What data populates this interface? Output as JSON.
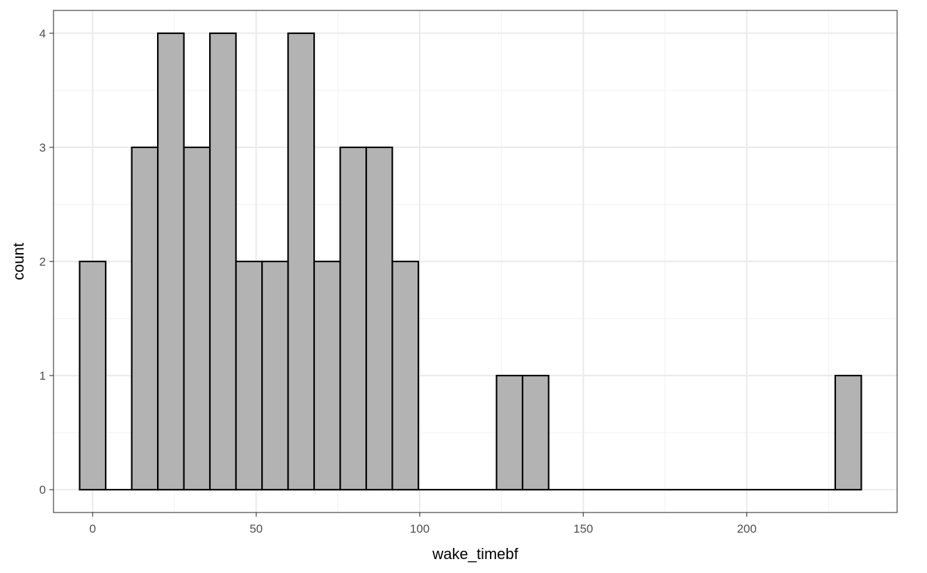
{
  "chart_data": {
    "type": "bar",
    "subtype": "histogram",
    "title": "",
    "xlabel": "wake_timebf",
    "ylabel": "count",
    "xlim": [
      -11.97,
      245.97
    ],
    "ylim": [
      -0.2,
      4.2
    ],
    "bin_width": 7.967,
    "bins": [
      {
        "start": -3.98,
        "end": 3.98,
        "count": 2
      },
      {
        "start": 3.98,
        "end": 11.95,
        "count": 0
      },
      {
        "start": 11.95,
        "end": 19.92,
        "count": 3
      },
      {
        "start": 19.92,
        "end": 27.89,
        "count": 4
      },
      {
        "start": 27.89,
        "end": 35.85,
        "count": 3
      },
      {
        "start": 35.85,
        "end": 43.82,
        "count": 4
      },
      {
        "start": 43.82,
        "end": 51.79,
        "count": 2
      },
      {
        "start": 51.79,
        "end": 59.75,
        "count": 2
      },
      {
        "start": 59.75,
        "end": 67.72,
        "count": 4
      },
      {
        "start": 67.72,
        "end": 75.69,
        "count": 2
      },
      {
        "start": 75.69,
        "end": 83.65,
        "count": 3
      },
      {
        "start": 83.65,
        "end": 91.62,
        "count": 3
      },
      {
        "start": 91.62,
        "end": 99.59,
        "count": 2
      },
      {
        "start": 99.59,
        "end": 107.55,
        "count": 0
      },
      {
        "start": 107.55,
        "end": 115.52,
        "count": 0
      },
      {
        "start": 115.52,
        "end": 123.49,
        "count": 0
      },
      {
        "start": 123.49,
        "end": 131.45,
        "count": 1
      },
      {
        "start": 131.45,
        "end": 139.42,
        "count": 1
      },
      {
        "start": 139.42,
        "end": 147.39,
        "count": 0
      },
      {
        "start": 147.39,
        "end": 155.35,
        "count": 0
      },
      {
        "start": 155.35,
        "end": 163.32,
        "count": 0
      },
      {
        "start": 163.32,
        "end": 171.29,
        "count": 0
      },
      {
        "start": 171.29,
        "end": 179.25,
        "count": 0
      },
      {
        "start": 179.25,
        "end": 187.22,
        "count": 0
      },
      {
        "start": 187.22,
        "end": 195.19,
        "count": 0
      },
      {
        "start": 195.19,
        "end": 203.15,
        "count": 0
      },
      {
        "start": 203.15,
        "end": 211.12,
        "count": 0
      },
      {
        "start": 211.12,
        "end": 219.09,
        "count": 0
      },
      {
        "start": 219.09,
        "end": 227.05,
        "count": 0
      },
      {
        "start": 227.05,
        "end": 235.02,
        "count": 1
      }
    ],
    "x_ticks": [
      0,
      50,
      100,
      150,
      200
    ],
    "x_tick_labels": [
      "0",
      "50",
      "100",
      "150",
      "200"
    ],
    "x_minor_ticks": [
      25,
      75,
      125,
      175,
      225
    ],
    "y_ticks": [
      0,
      1,
      2,
      3,
      4
    ],
    "y_tick_labels": [
      "0",
      "1",
      "2",
      "3",
      "4"
    ],
    "y_minor_ticks": [
      0.5,
      1.5,
      2.5,
      3.5
    ],
    "grid": true,
    "legend": "none",
    "colors": {
      "bar_fill": "#b3b3b3",
      "bar_stroke": "#000000",
      "grid_major": "#ebebeb",
      "grid_minor": "#f2f2f2",
      "panel_border": "#333333",
      "tick_text": "#4d4d4d",
      "axis_title": "#000000"
    }
  }
}
